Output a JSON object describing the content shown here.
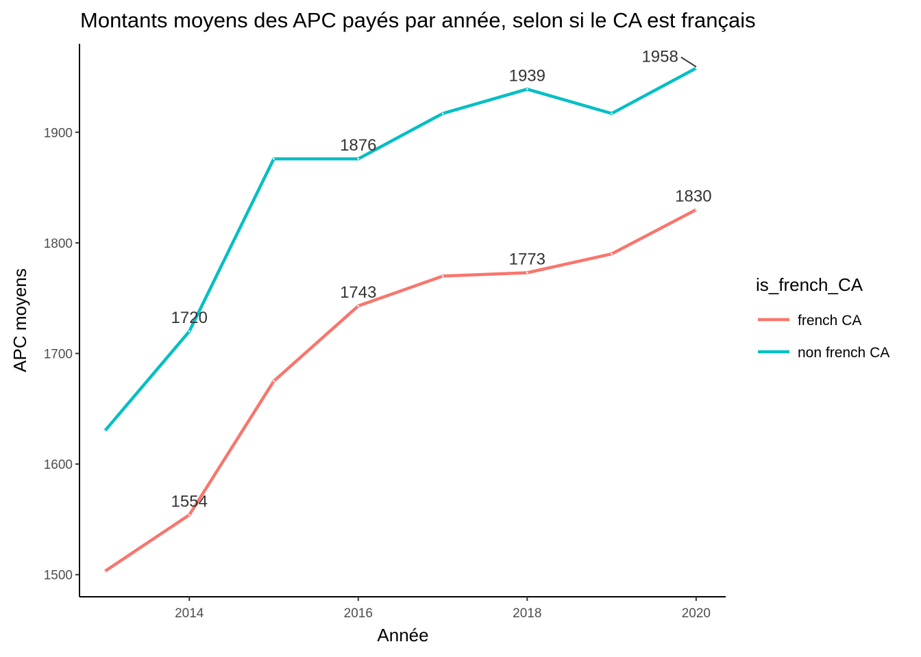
{
  "chart_data": {
    "type": "line",
    "title": "Montants moyens des APC payés par année, selon si le CA est français",
    "xlabel": "Année",
    "ylabel": "APC moyens",
    "x": [
      2013,
      2014,
      2015,
      2016,
      2017,
      2018,
      2019,
      2020
    ],
    "xticks": [
      2014,
      2016,
      2018,
      2020
    ],
    "yticks": [
      1500,
      1600,
      1700,
      1800,
      1900
    ],
    "xlim": [
      2012.7,
      2020.35
    ],
    "ylim": [
      1480,
      1980
    ],
    "grid": false,
    "legend": {
      "title": "is_french_CA",
      "position": "right"
    },
    "series": [
      {
        "name": "french CA",
        "color": "#F8766D",
        "values": [
          1503,
          1554,
          1675,
          1743,
          1770,
          1773,
          1790,
          1830
        ],
        "labels": [
          {
            "x": 2014,
            "text": "1554"
          },
          {
            "x": 2016,
            "text": "1743"
          },
          {
            "x": 2018,
            "text": "1773"
          },
          {
            "x": 2020,
            "text": "1830"
          }
        ]
      },
      {
        "name": "non french CA",
        "color": "#00BFC4",
        "values": [
          1630,
          1720,
          1876,
          1876,
          1917,
          1939,
          1917,
          1958
        ],
        "labels": [
          {
            "x": 2014,
            "text": "1720"
          },
          {
            "x": 2016,
            "text": "1876"
          },
          {
            "x": 2018,
            "text": "1939"
          },
          {
            "x": 2020,
            "text": "1958"
          }
        ]
      }
    ]
  }
}
